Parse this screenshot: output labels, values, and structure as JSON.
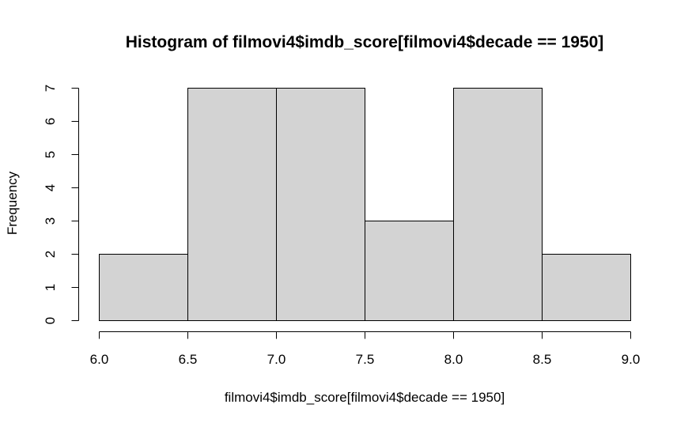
{
  "chart_data": {
    "type": "bar",
    "subtype": "histogram",
    "title": "Histogram of filmovi4$imdb_score[filmovi4$decade == 1950]",
    "xlabel": "filmovi4$imdb_score[filmovi4$decade == 1950]",
    "ylabel": "Frequency",
    "breaks": [
      6.0,
      6.5,
      7.0,
      7.5,
      8.0,
      8.5,
      9.0
    ],
    "values": [
      2,
      7,
      7,
      3,
      7,
      2
    ],
    "xlim": [
      6.0,
      9.0
    ],
    "ylim": [
      0,
      7
    ],
    "xticks": [
      "6.0",
      "6.5",
      "7.0",
      "7.5",
      "8.0",
      "8.5",
      "9.0"
    ],
    "yticks": [
      "0",
      "1",
      "2",
      "3",
      "4",
      "5",
      "6",
      "7"
    ],
    "bar_color": "#d3d3d3",
    "border_color": "#000000",
    "grid": false
  }
}
